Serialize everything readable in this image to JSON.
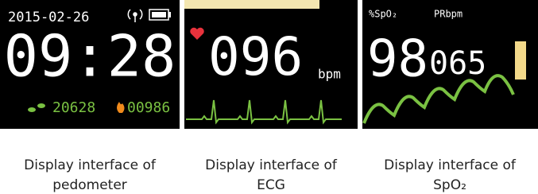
{
  "panels": [
    {
      "date": "2015-02-26",
      "time": "09:28",
      "steps": "20628",
      "calories": "00986",
      "caption": [
        "Display interface of",
        "pedometer"
      ]
    },
    {
      "value": "096",
      "unit": "bpm",
      "caption": [
        "Display interface of",
        "ECG"
      ]
    },
    {
      "label_spo2": "%SpO₂",
      "label_pr": "PRbpm",
      "spo2": "98",
      "pr": "065",
      "caption": [
        "Display interface of",
        "SpO₂"
      ]
    }
  ]
}
